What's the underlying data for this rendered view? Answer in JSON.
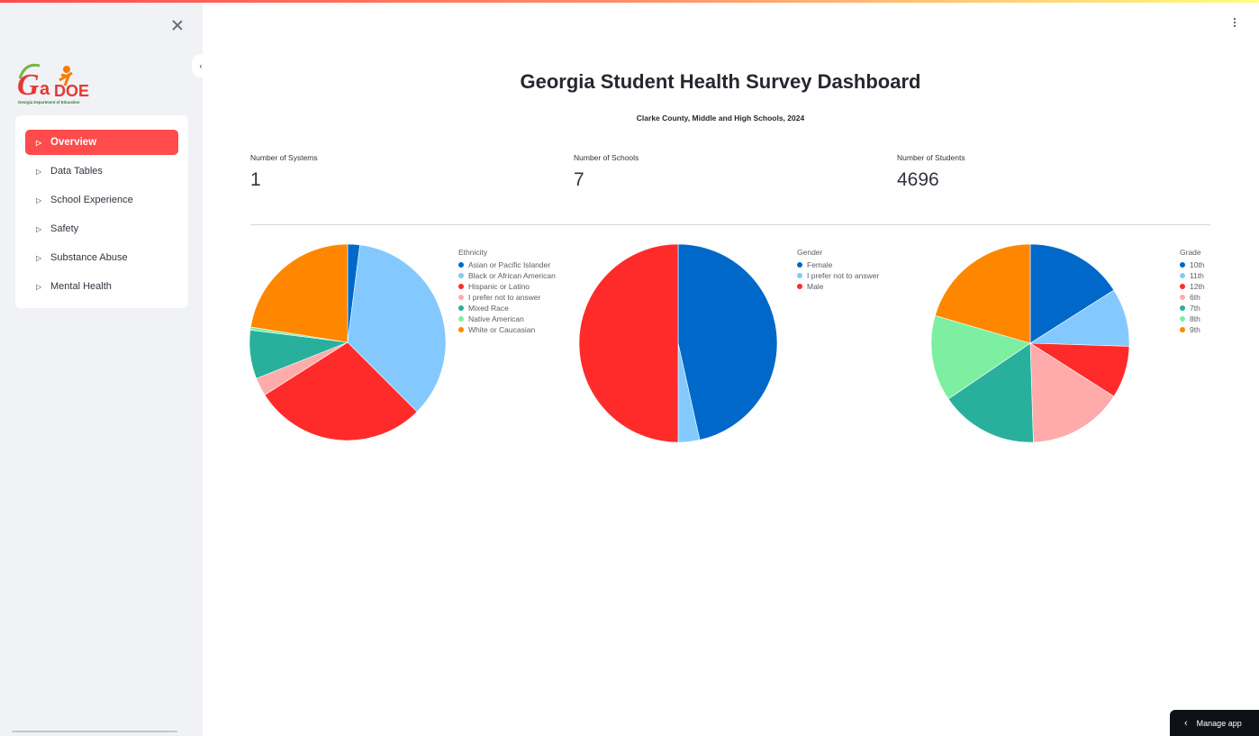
{
  "sidebar": {
    "logo": {
      "text": "GaDOE",
      "subtext": "Georgia Department of Education"
    },
    "items": [
      {
        "label": "Overview",
        "active": true
      },
      {
        "label": "Data Tables",
        "active": false
      },
      {
        "label": "School Experience",
        "active": false
      },
      {
        "label": "Safety",
        "active": false
      },
      {
        "label": "Substance Abuse",
        "active": false
      },
      {
        "label": "Mental Health",
        "active": false
      }
    ]
  },
  "header": {
    "title": "Georgia Student Health Survey Dashboard",
    "subtitle": "Clarke County, Middle and High Schools, 2024"
  },
  "metrics": [
    {
      "label": "Number of Systems",
      "value": "1"
    },
    {
      "label": "Number of Schools",
      "value": "7"
    },
    {
      "label": "Number of Students",
      "value": "4696"
    }
  ],
  "manage_app": {
    "label": "Manage app"
  },
  "chart_data": [
    {
      "type": "pie",
      "legend_title": "Ethnicity",
      "legend_position": "right",
      "labels": [
        "Asian or Pacific Islander",
        "Black or African American",
        "Hispanic or Latino",
        "I prefer not to answer",
        "Mixed Race",
        "Native American",
        "White or Caucasian"
      ],
      "values": [
        2.0,
        35.5,
        28.5,
        3.0,
        8.0,
        0.5,
        22.5
      ],
      "colors": [
        "#0068c9",
        "#83c9ff",
        "#ff2b2b",
        "#ffabab",
        "#29b09d",
        "#7defa1",
        "#ff8700"
      ]
    },
    {
      "type": "pie",
      "legend_title": "Gender",
      "legend_position": "right",
      "labels": [
        "Female",
        "I prefer not to answer",
        "Male"
      ],
      "values": [
        46.5,
        3.5,
        50.0
      ],
      "colors": [
        "#0068c9",
        "#83c9ff",
        "#ff2b2b"
      ]
    },
    {
      "type": "pie",
      "legend_title": "Grade",
      "legend_position": "right",
      "labels": [
        "10th",
        "11th",
        "12th",
        "6th",
        "7th",
        "8th",
        "9th"
      ],
      "values": [
        16.0,
        9.5,
        8.5,
        15.5,
        16.0,
        14.0,
        20.5
      ],
      "colors": [
        "#0068c9",
        "#83c9ff",
        "#ff2b2b",
        "#ffabab",
        "#29b09d",
        "#7defa1",
        "#ff8700"
      ]
    }
  ]
}
